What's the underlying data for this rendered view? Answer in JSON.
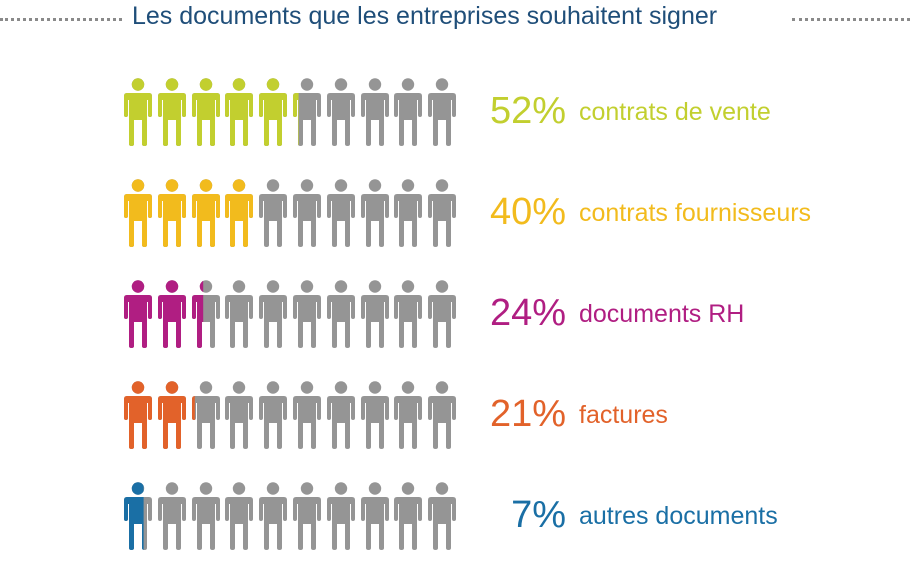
{
  "title": "Les documents que les entreprises souhaitent signer",
  "neutral_color": "#959595",
  "rows": [
    {
      "percent_label": "52%",
      "label": "contrats de vente",
      "color": "#c2cf2f"
    },
    {
      "percent_label": "40%",
      "label": "contrats fournisseurs",
      "color": "#f2bb1d"
    },
    {
      "percent_label": "24%",
      "label": "documents RH",
      "color": "#b01e82"
    },
    {
      "percent_label": "21%",
      "label": "factures",
      "color": "#e2622a"
    },
    {
      "percent_label": "7%",
      "label": "autres documents",
      "color": "#1a6fa5"
    }
  ],
  "chart_data": {
    "type": "bar",
    "title": "Les documents que les entreprises souhaitent signer",
    "categories": [
      "contrats de vente",
      "contrats fournisseurs",
      "documents RH",
      "factures",
      "autres documents"
    ],
    "values": [
      52,
      40,
      24,
      21,
      7
    ],
    "icons_per_row": 10,
    "icon": "person-icon",
    "unit": "%"
  }
}
